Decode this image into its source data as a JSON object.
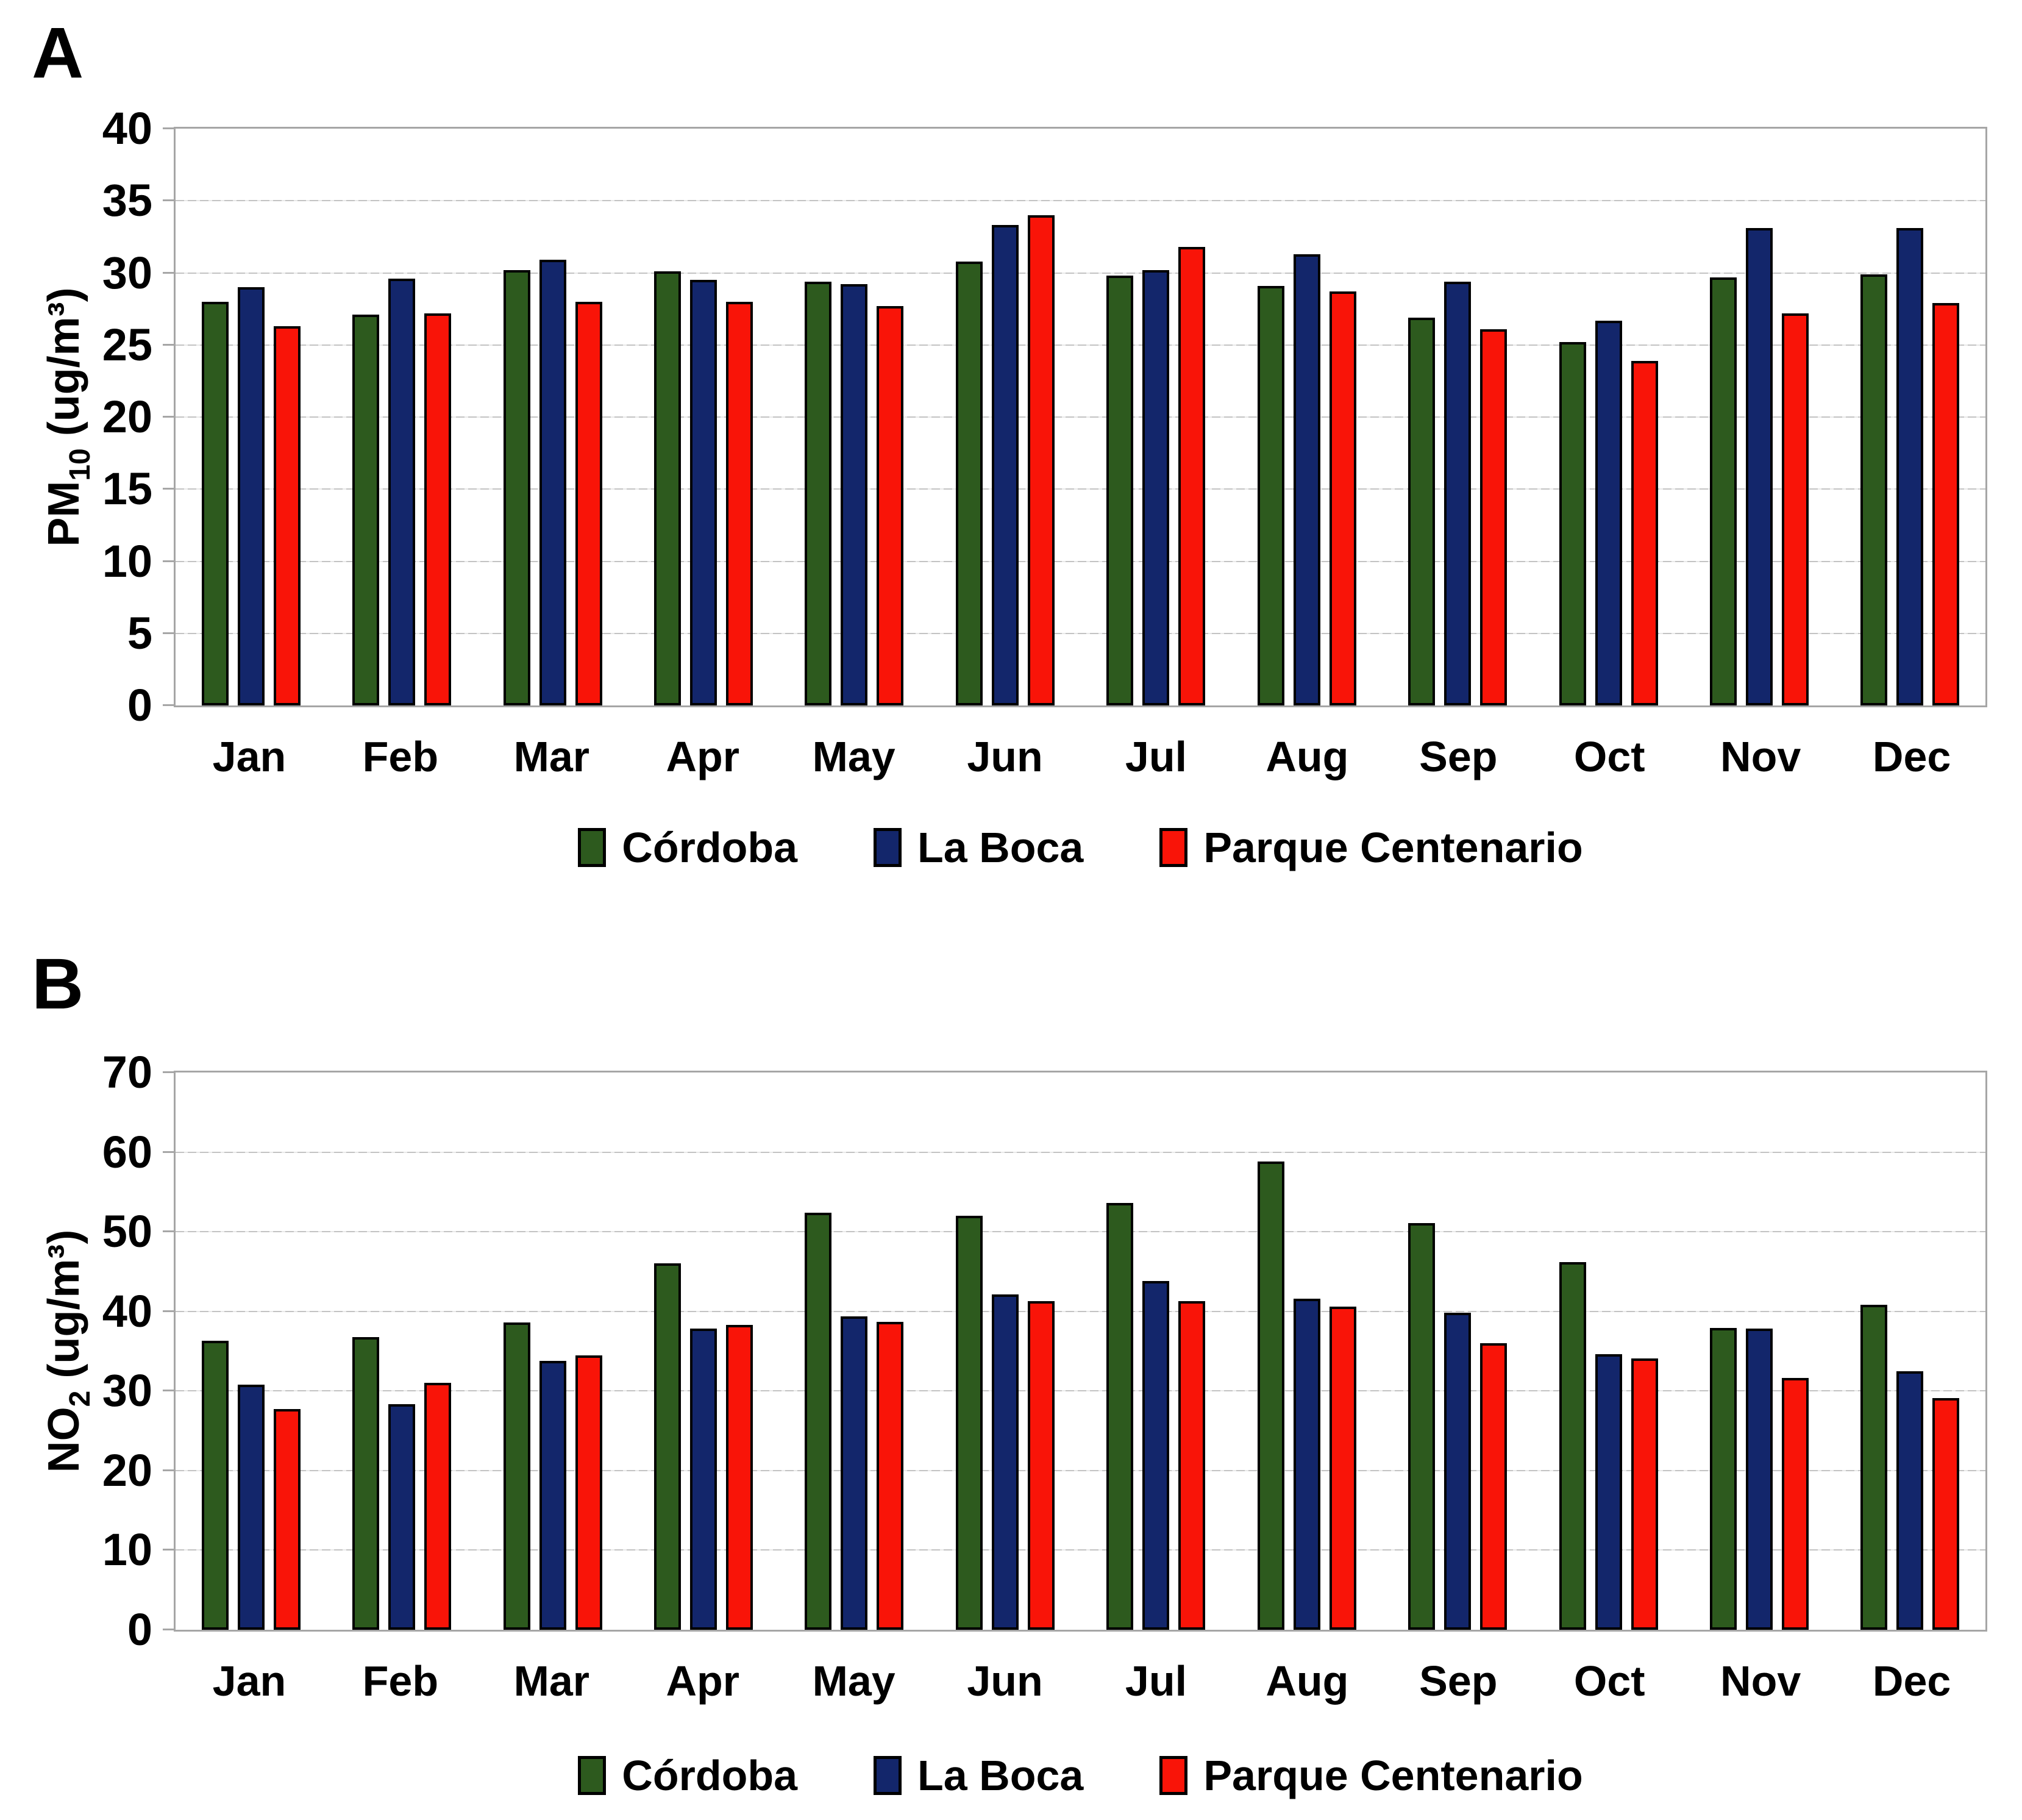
{
  "figure": {
    "background": "#ffffff"
  },
  "colors": {
    "grid": "#c3c3c3",
    "plot_border": "#a6a6a6",
    "bar_outline": "#000000",
    "cordoba_green": "#2d5a1e",
    "la_boca_navy": "#13266b",
    "parque_red": "#f91408"
  },
  "chart_data": [
    {
      "type": "bar",
      "panel_label": "A",
      "title": "",
      "xlabel": "",
      "ylabel": {
        "prefix": "PM",
        "sub": "10",
        "suffix": " (ug/m³)"
      },
      "ylim": [
        0,
        40
      ],
      "ytick_step": 5,
      "yticks": [
        0,
        5,
        10,
        15,
        20,
        25,
        30,
        35,
        40
      ],
      "grid": true,
      "legend_position": "bottom",
      "categories": [
        "Jan",
        "Feb",
        "Mar",
        "Apr",
        "May",
        "Jun",
        "Jul",
        "Aug",
        "Sep",
        "Oct",
        "Nov",
        "Dec"
      ],
      "category_keys": [
        "jan",
        "feb",
        "mar",
        "apr",
        "may",
        "jun",
        "jul",
        "aug",
        "sep",
        "oct",
        "nov",
        "dec"
      ],
      "series": [
        {
          "name": "Córdoba",
          "key": "cordoba",
          "color": "#2d5a1e",
          "values": [
            28.0,
            27.1,
            30.2,
            30.1,
            29.4,
            30.8,
            29.8,
            29.1,
            26.9,
            25.2,
            29.7,
            29.9
          ]
        },
        {
          "name": "La Boca",
          "key": "la-boca",
          "color": "#13266b",
          "values": [
            29.0,
            29.6,
            30.9,
            29.5,
            29.2,
            33.3,
            30.2,
            31.3,
            29.4,
            26.7,
            33.1,
            33.1
          ]
        },
        {
          "name": "Parque Centenario",
          "key": "parque-centenario",
          "color": "#f91408",
          "values": [
            26.3,
            27.2,
            28.0,
            28.0,
            27.7,
            34.0,
            31.8,
            28.7,
            26.1,
            23.9,
            27.2,
            27.9
          ]
        }
      ]
    },
    {
      "type": "bar",
      "panel_label": "B",
      "title": "",
      "xlabel": "",
      "ylabel": {
        "prefix": "NO",
        "sub": "2",
        "suffix": " (ug/m³)"
      },
      "ylim": [
        0,
        70
      ],
      "ytick_step": 10,
      "yticks": [
        0,
        10,
        20,
        30,
        40,
        50,
        60,
        70
      ],
      "grid": true,
      "legend_position": "bottom",
      "categories": [
        "Jan",
        "Feb",
        "Mar",
        "Apr",
        "May",
        "Jun",
        "Jul",
        "Aug",
        "Sep",
        "Oct",
        "Nov",
        "Dec"
      ],
      "category_keys": [
        "jan",
        "feb",
        "mar",
        "apr",
        "may",
        "jun",
        "jul",
        "aug",
        "sep",
        "oct",
        "nov",
        "dec"
      ],
      "series": [
        {
          "name": "Córdoba",
          "key": "cordoba",
          "color": "#2d5a1e",
          "values": [
            36.3,
            36.8,
            38.6,
            46.0,
            52.4,
            52.0,
            53.6,
            58.8,
            51.1,
            46.2,
            37.9,
            40.8
          ]
        },
        {
          "name": "La Boca",
          "key": "la-boca",
          "color": "#13266b",
          "values": [
            30.8,
            28.3,
            33.8,
            37.8,
            39.4,
            42.1,
            43.8,
            41.6,
            39.8,
            34.6,
            37.8,
            32.5
          ]
        },
        {
          "name": "Parque Centenario",
          "key": "parque-centenario",
          "color": "#f91408",
          "values": [
            27.7,
            31.0,
            34.5,
            38.3,
            38.7,
            41.3,
            41.3,
            40.6,
            36.0,
            34.1,
            31.6,
            29.1
          ]
        }
      ]
    }
  ]
}
